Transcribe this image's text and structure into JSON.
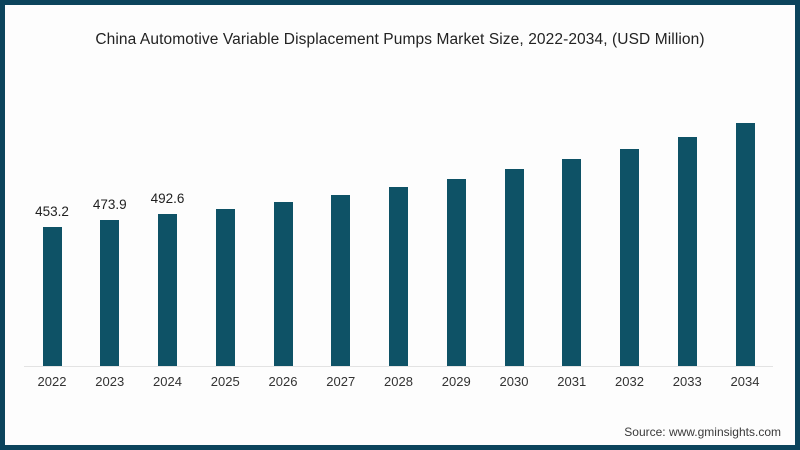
{
  "chart_data": {
    "type": "bar",
    "title": "China Automotive Variable Displacement Pumps Market Size, 2022-2034, (USD Million)",
    "categories": [
      "2022",
      "2023",
      "2024",
      "2025",
      "2026",
      "2027",
      "2028",
      "2029",
      "2030",
      "2031",
      "2032",
      "2033",
      "2034"
    ],
    "values": [
      453.2,
      473.9,
      492.6,
      510,
      532,
      556,
      582,
      608,
      640,
      672,
      706,
      744,
      790
    ],
    "bar_labels": [
      "453.2",
      "473.9",
      "492.6",
      "",
      "",
      "",
      "",
      "",
      "",
      "",
      "",
      "",
      ""
    ],
    "xlabel": "",
    "ylabel": "",
    "ylim": [
      0,
      926
    ],
    "grid": false,
    "legend_position": "none",
    "y_axis_shown": false
  },
  "source": {
    "label": "Source: www.gminsights.com"
  },
  "colors": {
    "bar": "#0e5266",
    "frame_border": "#0c445c",
    "baseline": "#e3e3e3",
    "title_text": "#222222",
    "tick_text": "#333333",
    "source_text": "#3a3a3a",
    "background": "#fdfdfd"
  }
}
